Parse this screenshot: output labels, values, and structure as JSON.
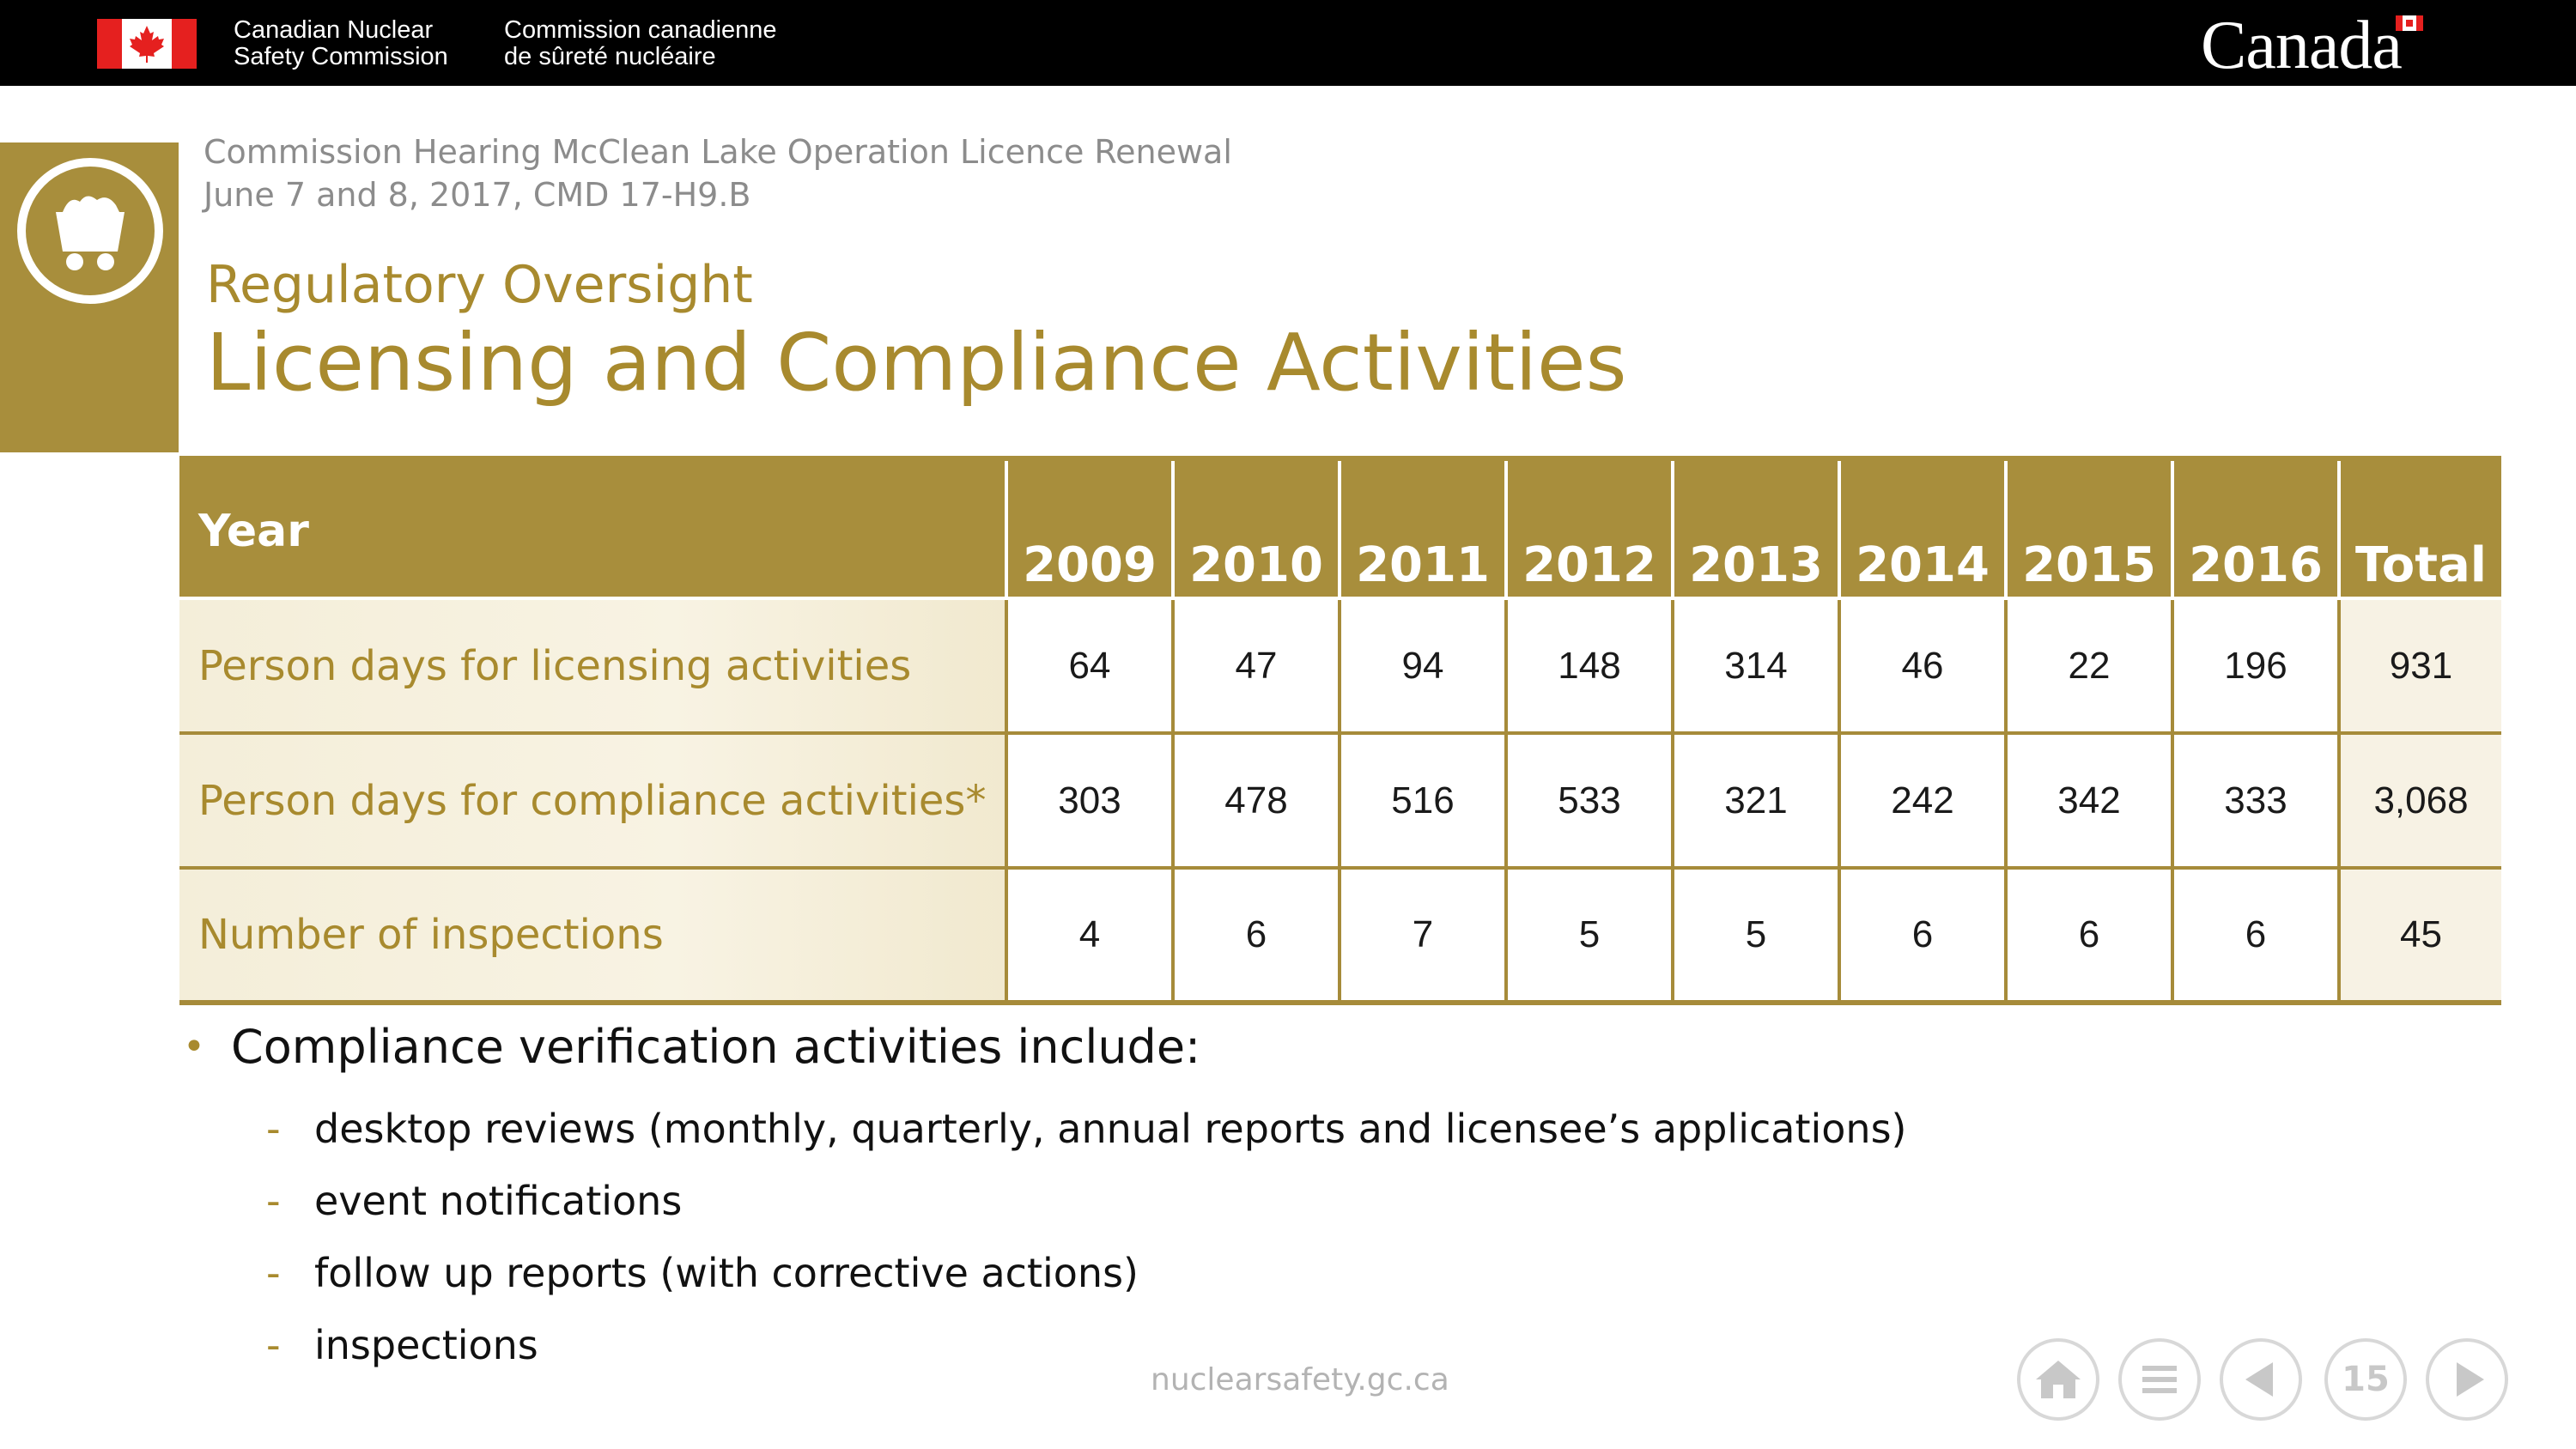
{
  "header": {
    "org_name_en_line1": "Canadian Nuclear",
    "org_name_en_line2": "Safety Commission",
    "org_name_fr_line1": "Commission canadienne",
    "org_name_fr_line2": "de sûreté nucléaire",
    "wordmark": "Canada",
    "flag_icon": "canadian-flag-icon",
    "colors": {
      "bar": "#000000",
      "flag_red": "#e5201f"
    }
  },
  "slide": {
    "hearing_line1": "Commission Hearing McClean Lake Operation Licence Renewal",
    "hearing_line2": "June 7 and 8, 2017, CMD 17-H9.B",
    "section": "Regulatory Oversight",
    "title": "Licensing and Compliance Activities",
    "side_icon": "mine-cart-icon",
    "accent_color": "#a88e3c"
  },
  "table": {
    "header_label": "Year",
    "columns": [
      "2009",
      "2010",
      "2011",
      "2012",
      "2013",
      "2014",
      "2015",
      "2016",
      "Total"
    ],
    "rows": [
      {
        "label": "Person days for licensing activities",
        "values": [
          "64",
          "47",
          "94",
          "148",
          "314",
          "46",
          "22",
          "196",
          "931"
        ]
      },
      {
        "label": "Person days for compliance activities*",
        "values": [
          "303",
          "478",
          "516",
          "533",
          "321",
          "242",
          "342",
          "333",
          "3,068"
        ]
      },
      {
        "label": "Number of inspections",
        "values": [
          "4",
          "6",
          "7",
          "5",
          "5",
          "6",
          "6",
          "6",
          "45"
        ]
      }
    ]
  },
  "bullets": {
    "main": "Compliance verification activities include:",
    "items": [
      "desktop reviews (monthly, quarterly, annual reports and licensee’s applications)",
      "event notifications",
      "follow up reports (with corrective actions)",
      "inspections"
    ]
  },
  "footer": {
    "url": "nuclearsafety.gc.ca",
    "page_number": "15",
    "nav_icons": [
      "home-icon",
      "menu-icon",
      "previous-icon",
      "next-icon"
    ]
  }
}
